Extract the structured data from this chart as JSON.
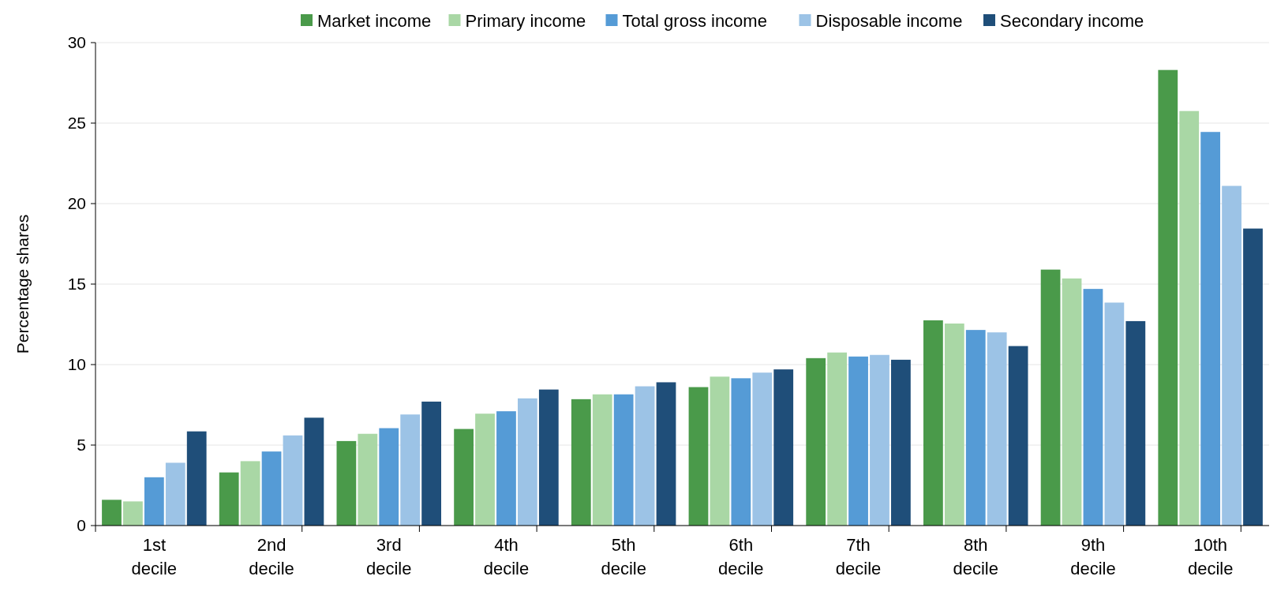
{
  "chart_data": {
    "type": "bar",
    "ylabel": "Percentage shares",
    "categories": [
      "1st decile",
      "2nd decile",
      "3rd decile",
      "4th decile",
      "5th decile",
      "6th decile",
      "7th decile",
      "8th decile",
      "9th decile",
      "10th decile"
    ],
    "series": [
      {
        "name": "Market income",
        "color": "#4a9a4a",
        "values": [
          1.6,
          3.3,
          5.25,
          6.0,
          7.85,
          8.6,
          10.4,
          12.75,
          15.9,
          28.3
        ]
      },
      {
        "name": "Primary income",
        "color": "#a9d7a5",
        "values": [
          1.5,
          4.0,
          5.7,
          6.95,
          8.15,
          9.25,
          10.75,
          12.55,
          15.35,
          25.75
        ]
      },
      {
        "name": "Total gross income",
        "color": "#559bd6",
        "values": [
          3.0,
          4.6,
          6.05,
          7.1,
          8.15,
          9.15,
          10.5,
          12.15,
          14.7,
          24.45
        ]
      },
      {
        "name": "Disposable income",
        "color": "#9cc3e6",
        "values": [
          3.9,
          5.6,
          6.9,
          7.9,
          8.65,
          9.5,
          10.6,
          12.0,
          13.85,
          21.1
        ]
      },
      {
        "name": "Secondary income",
        "color": "#1f4e79",
        "values": [
          5.85,
          6.7,
          7.7,
          8.45,
          8.9,
          9.7,
          10.3,
          11.15,
          12.7,
          18.45
        ]
      }
    ],
    "ylim": [
      0,
      30
    ],
    "yticks": [
      0,
      5,
      10,
      15,
      20,
      25,
      30
    ],
    "grid": "y",
    "legend": "top"
  }
}
